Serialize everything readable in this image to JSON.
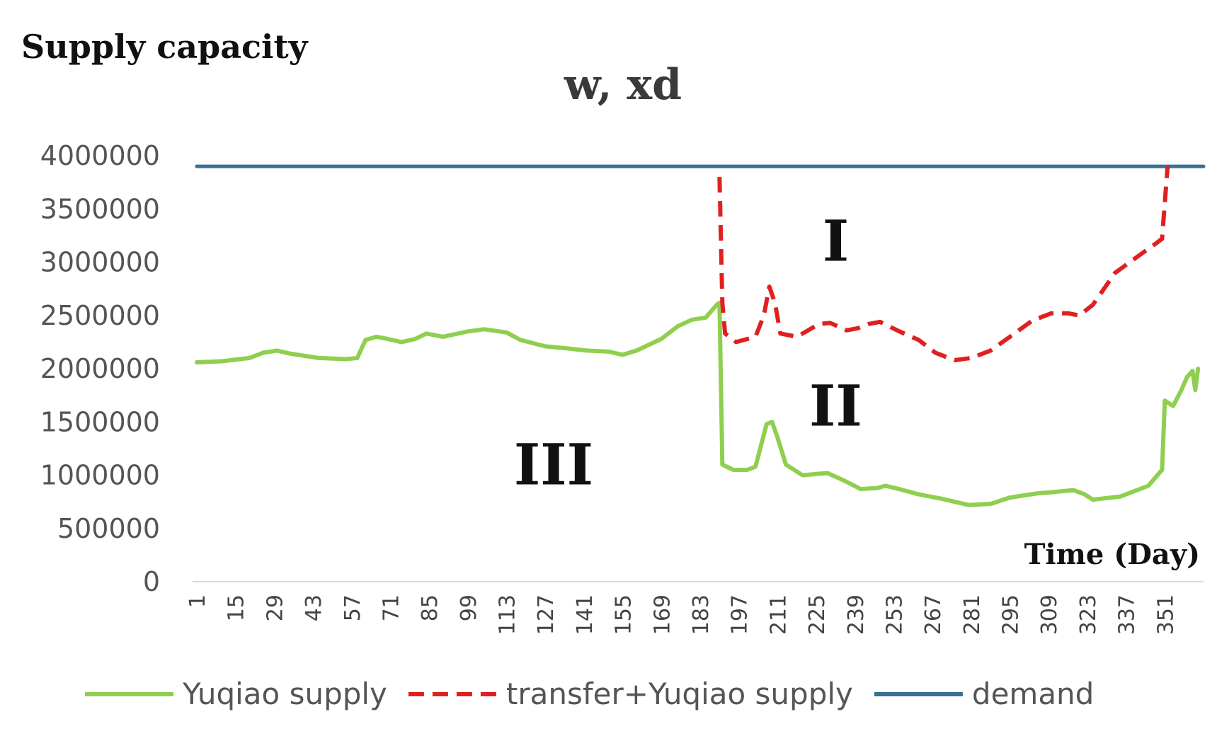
{
  "chart_data": {
    "type": "line",
    "ylabel": "Supply capacity",
    "unit_label": "w, xd",
    "xlabel": "Time (Day)",
    "ylim": [
      0,
      4000000
    ],
    "y_ticks": [
      "0",
      "500000",
      "1000000",
      "1500000",
      "2000000",
      "2500000",
      "3000000",
      "3500000",
      "4000000"
    ],
    "x_range": [
      1,
      365
    ],
    "x_ticks": [
      "1",
      "15",
      "29",
      "43",
      "57",
      "71",
      "85",
      "99",
      "113",
      "127",
      "141",
      "155",
      "169",
      "183",
      "197",
      "211",
      "225",
      "239",
      "253",
      "267",
      "281",
      "295",
      "309",
      "323",
      "337",
      "351"
    ],
    "grid": false,
    "legend_position": "bottom",
    "region_labels": [
      {
        "text": "I",
        "x": 232,
        "y": 3200000
      },
      {
        "text": "II",
        "x": 232,
        "y": 1650000
      },
      {
        "text": "III",
        "x": 130,
        "y": 1100000
      }
    ],
    "series": [
      {
        "name": "Yuqiao supply",
        "color": "#8fcf4f",
        "style": "solid",
        "points": [
          [
            1,
            2060000
          ],
          [
            10,
            2070000
          ],
          [
            20,
            2100000
          ],
          [
            25,
            2150000
          ],
          [
            30,
            2170000
          ],
          [
            35,
            2140000
          ],
          [
            45,
            2100000
          ],
          [
            55,
            2090000
          ],
          [
            59,
            2100000
          ],
          [
            62,
            2270000
          ],
          [
            66,
            2300000
          ],
          [
            70,
            2280000
          ],
          [
            75,
            2250000
          ],
          [
            80,
            2280000
          ],
          [
            84,
            2330000
          ],
          [
            90,
            2300000
          ],
          [
            99,
            2350000
          ],
          [
            105,
            2370000
          ],
          [
            113,
            2340000
          ],
          [
            118,
            2270000
          ],
          [
            127,
            2210000
          ],
          [
            135,
            2190000
          ],
          [
            142,
            2170000
          ],
          [
            150,
            2160000
          ],
          [
            155,
            2130000
          ],
          [
            160,
            2170000
          ],
          [
            169,
            2280000
          ],
          [
            175,
            2400000
          ],
          [
            180,
            2460000
          ],
          [
            185,
            2480000
          ],
          [
            189,
            2600000
          ],
          [
            190,
            2620000
          ],
          [
            191,
            1100000
          ],
          [
            195,
            1050000
          ],
          [
            200,
            1050000
          ],
          [
            203,
            1080000
          ],
          [
            207,
            1480000
          ],
          [
            209,
            1500000
          ],
          [
            211,
            1350000
          ],
          [
            214,
            1100000
          ],
          [
            220,
            1000000
          ],
          [
            229,
            1020000
          ],
          [
            235,
            950000
          ],
          [
            241,
            870000
          ],
          [
            247,
            880000
          ],
          [
            250,
            900000
          ],
          [
            255,
            870000
          ],
          [
            262,
            820000
          ],
          [
            270,
            780000
          ],
          [
            280,
            720000
          ],
          [
            288,
            730000
          ],
          [
            295,
            790000
          ],
          [
            305,
            830000
          ],
          [
            310,
            840000
          ],
          [
            318,
            860000
          ],
          [
            322,
            820000
          ],
          [
            325,
            770000
          ],
          [
            335,
            800000
          ],
          [
            345,
            900000
          ],
          [
            350,
            1050000
          ],
          [
            351,
            1700000
          ],
          [
            354,
            1650000
          ],
          [
            357,
            1800000
          ],
          [
            359,
            1920000
          ],
          [
            361,
            1980000
          ],
          [
            362,
            1800000
          ],
          [
            363,
            2000000
          ]
        ]
      },
      {
        "name": "transfer+Yuqiao supply",
        "color": "#e02020",
        "style": "dashed",
        "points": [
          [
            190,
            3800000
          ],
          [
            191,
            2620000
          ],
          [
            192,
            2330000
          ],
          [
            196,
            2250000
          ],
          [
            203,
            2300000
          ],
          [
            206,
            2500000
          ],
          [
            208,
            2770000
          ],
          [
            210,
            2620000
          ],
          [
            212,
            2330000
          ],
          [
            218,
            2300000
          ],
          [
            226,
            2420000
          ],
          [
            230,
            2430000
          ],
          [
            236,
            2360000
          ],
          [
            240,
            2380000
          ],
          [
            244,
            2420000
          ],
          [
            248,
            2440000
          ],
          [
            255,
            2350000
          ],
          [
            262,
            2270000
          ],
          [
            268,
            2150000
          ],
          [
            275,
            2080000
          ],
          [
            281,
            2100000
          ],
          [
            288,
            2170000
          ],
          [
            295,
            2300000
          ],
          [
            303,
            2450000
          ],
          [
            310,
            2520000
          ],
          [
            316,
            2520000
          ],
          [
            320,
            2500000
          ],
          [
            325,
            2600000
          ],
          [
            333,
            2900000
          ],
          [
            341,
            3050000
          ],
          [
            348,
            3180000
          ],
          [
            350,
            3220000
          ],
          [
            352,
            3900000
          ]
        ]
      },
      {
        "name": "demand",
        "color": "#3a7090",
        "style": "solid",
        "points": [
          [
            1,
            3900000
          ],
          [
            365,
            3900000
          ]
        ]
      }
    ]
  }
}
